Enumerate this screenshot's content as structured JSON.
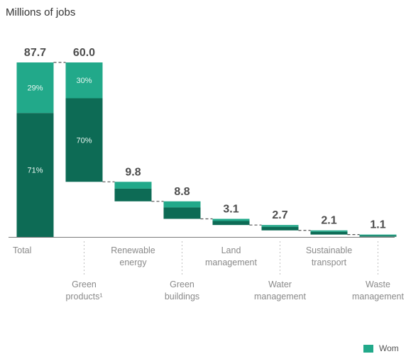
{
  "chart_data": {
    "type": "bar",
    "subtype": "waterfall",
    "ylabel": "Millions of jobs",
    "ylim": [
      0,
      90
    ],
    "categories": [
      {
        "label": "Total",
        "value": 87.7,
        "value_label": "87.7",
        "label_row": "upper",
        "kind": "total",
        "segments": [
          {
            "share": 0.71,
            "label": "71%"
          },
          {
            "share": 0.29,
            "label": "29%"
          }
        ]
      },
      {
        "label": "Green\nproducts¹",
        "value": 60.0,
        "value_label": "60.0",
        "label_row": "lower",
        "kind": "breakdown",
        "segments": [
          {
            "share": 0.7,
            "label": "70%"
          },
          {
            "share": 0.3,
            "label": "30%"
          }
        ]
      },
      {
        "label": "Renewable\nenergy",
        "value": 9.8,
        "value_label": "9.8",
        "label_row": "upper",
        "kind": "breakdown"
      },
      {
        "label": "Green\nbuildings",
        "value": 8.8,
        "value_label": "8.8",
        "label_row": "lower",
        "kind": "breakdown"
      },
      {
        "label": "Land\nmanagement",
        "value": 3.1,
        "value_label": "3.1",
        "label_row": "upper",
        "kind": "breakdown"
      },
      {
        "label": "Water\nmanagement",
        "value": 2.7,
        "value_label": "2.7",
        "label_row": "lower",
        "kind": "breakdown"
      },
      {
        "label": "Sustainable\ntransport",
        "value": 2.1,
        "value_label": "2.1",
        "label_row": "upper",
        "kind": "breakdown"
      },
      {
        "label": "Waste\nmanagement",
        "value": 1.1,
        "value_label": "1.1",
        "label_row": "lower",
        "kind": "breakdown"
      }
    ],
    "legend": [
      {
        "label": "Wom",
        "color": "#22a98a"
      }
    ],
    "colors": {
      "dark": "#0d6b55",
      "light": "#22a98a",
      "value_text": "#4d4d4d",
      "connector": "#555555"
    }
  }
}
